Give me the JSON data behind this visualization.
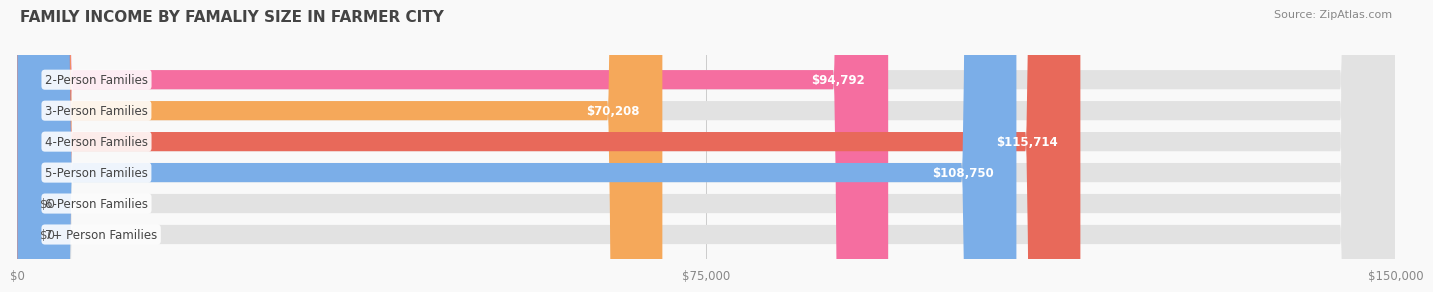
{
  "title": "FAMILY INCOME BY FAMALIY SIZE IN FARMER CITY",
  "source": "Source: ZipAtlas.com",
  "categories": [
    "2-Person Families",
    "3-Person Families",
    "4-Person Families",
    "5-Person Families",
    "6-Person Families",
    "7+ Person Families"
  ],
  "values": [
    94792,
    70208,
    115714,
    108750,
    0,
    0
  ],
  "bar_colors": [
    "#F56EA0",
    "#F5A85A",
    "#E8695A",
    "#7BAEE8",
    "#C4A8D8",
    "#7DD4DC"
  ],
  "value_labels": [
    "$94,792",
    "$70,208",
    "$115,714",
    "$108,750",
    "$0",
    "$0"
  ],
  "xlim": [
    0,
    150000
  ],
  "xticks": [
    0,
    75000,
    150000
  ],
  "xtick_labels": [
    "$0",
    "$75,000",
    "$150,000"
  ],
  "background_color": "#f9f9f9",
  "bar_bg_color": "#e2e2e2",
  "title_fontsize": 11,
  "label_fontsize": 8.5,
  "value_fontsize": 8.5,
  "source_fontsize": 8
}
